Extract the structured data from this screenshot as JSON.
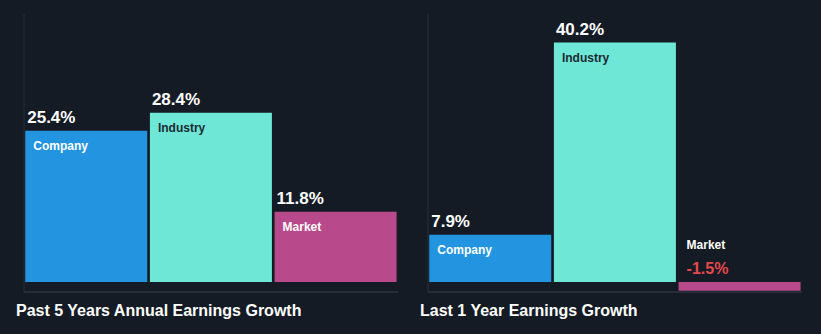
{
  "chart_data": [
    {
      "type": "bar",
      "title": "Past 5 Years Annual Earnings Growth",
      "categories": [
        "Company",
        "Industry",
        "Market"
      ],
      "values": [
        25.4,
        28.4,
        11.8
      ],
      "value_labels": [
        "25.4%",
        "28.4%",
        "11.8%"
      ],
      "colors": [
        "#2394df",
        "#6ee7d6",
        "#b84a8b"
      ],
      "ylim": [
        -1.7,
        45
      ],
      "data_labels": true,
      "tick_labels": false
    },
    {
      "type": "bar",
      "title": "Last 1 Year Earnings Growth",
      "categories": [
        "Company",
        "Industry",
        "Market"
      ],
      "values": [
        7.9,
        40.2,
        -1.5
      ],
      "value_labels": [
        "7.9%",
        "40.2%",
        "-1.5%"
      ],
      "colors": [
        "#2394df",
        "#6ee7d6",
        "#b84a8b"
      ],
      "ylim": [
        -1.7,
        45
      ],
      "data_labels": true,
      "tick_labels": false
    }
  ]
}
